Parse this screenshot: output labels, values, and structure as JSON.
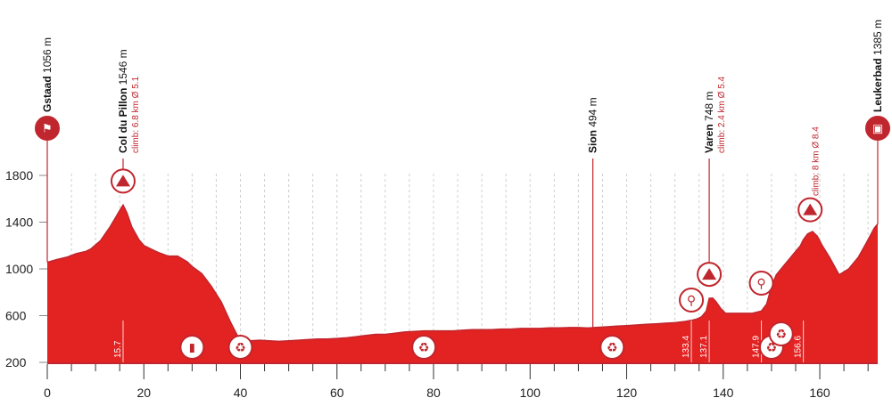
{
  "chart_data": {
    "type": "area",
    "title": "",
    "xlabel": "",
    "ylabel": "",
    "xlim": [
      0,
      172
    ],
    "ylim": [
      200,
      1800
    ],
    "x_ticks": [
      "0",
      "20",
      "40",
      "60",
      "80",
      "100",
      "120",
      "140",
      "160"
    ],
    "y_ticks": [
      "200",
      "600",
      "1000",
      "1400",
      "1800"
    ],
    "grid": "vertical dashed",
    "fill_color": "#e32222",
    "dark_red": "#c0262d",
    "profile": {
      "x": [
        0,
        2,
        4,
        6,
        8,
        9,
        11,
        12,
        13,
        14,
        15,
        15.7,
        16.5,
        17.5,
        19,
        20,
        22,
        23,
        25,
        27,
        29,
        30,
        32,
        34,
        36,
        38,
        40,
        42,
        44,
        46,
        48,
        50,
        52,
        54,
        56,
        58,
        60,
        62,
        64,
        66,
        68,
        70,
        72,
        74,
        76,
        78,
        80,
        82,
        84,
        86,
        88,
        90,
        92,
        94,
        96,
        98,
        100,
        102,
        104,
        106,
        108,
        110,
        112,
        114,
        116,
        118,
        120,
        122,
        124,
        126,
        128,
        130,
        131,
        132,
        133.4,
        134.5,
        135.5,
        136.5,
        137.1,
        137.8,
        138.5,
        139.5,
        140.5,
        142,
        144,
        146,
        147.9,
        149,
        150,
        151,
        152,
        153,
        154,
        155,
        156,
        156.6,
        157.5,
        158.5,
        159.5,
        160.5,
        162,
        164,
        166,
        168,
        170,
        171.3,
        172
      ],
      "y": [
        1056,
        1080,
        1100,
        1130,
        1150,
        1170,
        1240,
        1300,
        1360,
        1430,
        1500,
        1546,
        1480,
        1360,
        1250,
        1200,
        1160,
        1140,
        1110,
        1110,
        1060,
        1020,
        960,
        850,
        720,
        540,
        380,
        385,
        390,
        385,
        380,
        385,
        390,
        395,
        400,
        400,
        405,
        410,
        420,
        430,
        440,
        440,
        450,
        460,
        465,
        470,
        470,
        470,
        470,
        475,
        480,
        480,
        480,
        485,
        485,
        490,
        490,
        490,
        495,
        495,
        498,
        498,
        494,
        500,
        505,
        510,
        515,
        520,
        525,
        530,
        535,
        540,
        545,
        550,
        560,
        570,
        590,
        640,
        748,
        750,
        720,
        660,
        620,
        620,
        620,
        620,
        640,
        700,
        850,
        950,
        1000,
        1050,
        1100,
        1150,
        1200,
        1250,
        1300,
        1320,
        1280,
        1200,
        1100,
        950,
        1000,
        1100,
        1250,
        1350,
        1385
      ]
    },
    "locations": [
      {
        "name": "Gstaad",
        "altitude": "1056 m",
        "km": 0,
        "type": "start"
      },
      {
        "name": "Col du Pillon",
        "altitude": "1546 m",
        "km": 15.7,
        "climb": "climb: 6.8 km Ø 5.1",
        "type": "climb"
      },
      {
        "name": "Sion",
        "altitude": "494 m",
        "km": 113,
        "type": "town"
      },
      {
        "name": "Varen",
        "altitude": "748 m",
        "km": 137.1,
        "climb": "climb: 2.4 km Ø 5.4",
        "type": "climb"
      },
      {
        "name": "",
        "altitude": "",
        "km": 156.6,
        "climb": "climb: 8 km Ø 8.4",
        "type": "climb"
      },
      {
        "name": "Leukerbad",
        "altitude": "1385 m",
        "km": 172,
        "type": "finish"
      }
    ],
    "km_markers": [
      "15.7",
      "133.4",
      "137.1",
      "147.9",
      "156.6"
    ],
    "icons": [
      {
        "name": "climb-icon",
        "km": 15.7
      },
      {
        "name": "climb-icon",
        "km": 137.1
      },
      {
        "name": "climb-icon",
        "km": 158
      },
      {
        "name": "sprint-icon",
        "km": 133.4
      },
      {
        "name": "sprint-icon",
        "km": 147.9
      },
      {
        "name": "feed-zone-icon",
        "km": 30
      },
      {
        "name": "waste-zone-icon",
        "km": 40
      },
      {
        "name": "waste-zone-icon",
        "km": 78
      },
      {
        "name": "waste-zone-icon",
        "km": 117
      },
      {
        "name": "waste-zone-icon",
        "km": 150
      },
      {
        "name": "waste-zone-icon",
        "km": 152
      },
      {
        "name": "start-flag-icon",
        "km": 0
      },
      {
        "name": "finish-icon",
        "km": 172
      }
    ]
  }
}
